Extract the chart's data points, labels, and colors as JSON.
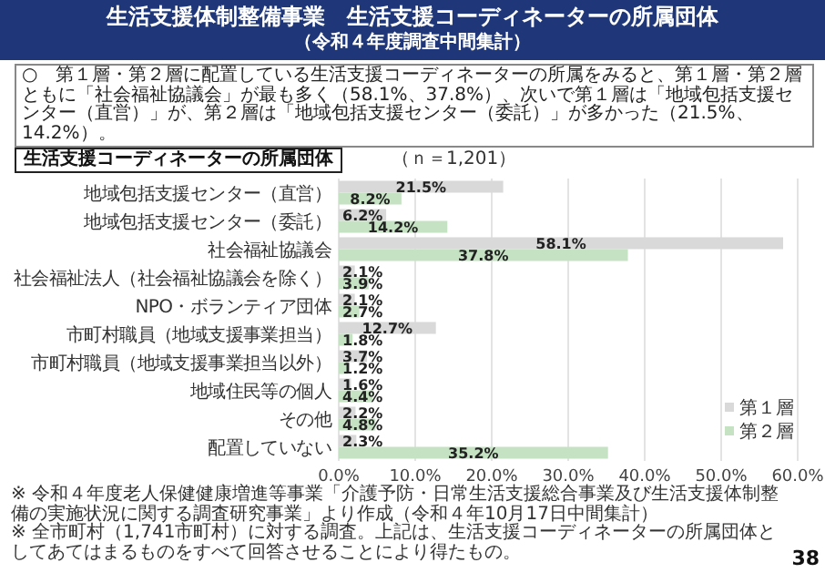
{
  "chart_data": {
    "type": "bar",
    "orientation": "horizontal",
    "title": "生活支援体制整備事業　生活支援コーディネーターの所属団体",
    "subtitle": "（令和４年度調査中間集計）",
    "categories": [
      "地域包括支援センター（直営）",
      "地域包括支援センター（委託）",
      "社会福祉協議会",
      "社会福祉法人（社会福祉協議会を除く）",
      "NPO・ボランティア団体",
      "市町村職員（地域支援事業担当）",
      "市町村職員（地域支援事業担当以外）",
      "地域住民等の個人",
      "その他",
      "配置していない"
    ],
    "series": [
      {
        "name": "第１層",
        "color": "#d9d9d9",
        "values": [
          21.5,
          6.2,
          58.1,
          2.1,
          2.1,
          12.7,
          3.7,
          1.6,
          2.2,
          2.3
        ],
        "value_labels": [
          "21.5%",
          "6.2%",
          "58.1%",
          "2.1%",
          "2.1%",
          "12.7%",
          "3.7%",
          "1.6%",
          "2.2%",
          "2.3%"
        ]
      },
      {
        "name": "第２層",
        "color": "#c5e3c3",
        "values": [
          8.2,
          14.2,
          37.8,
          3.9,
          2.7,
          1.8,
          1.2,
          4.4,
          4.8,
          35.2
        ],
        "value_labels": [
          "8.2%",
          "14.2%",
          "37.8%",
          "3.9%",
          "2.7%",
          "1.8%",
          "1.2%",
          "4.4%",
          "4.8%",
          "35.2%"
        ]
      }
    ],
    "xlim": [
      0,
      60
    ],
    "xticks": [
      {
        "value": 0,
        "label": "0.0%"
      },
      {
        "value": 10,
        "label": "10.0%"
      },
      {
        "value": 20,
        "label": "20.0%"
      },
      {
        "value": 30,
        "label": "30.0%"
      },
      {
        "value": 40,
        "label": "40.0%"
      },
      {
        "value": 50,
        "label": "50.0%"
      },
      {
        "value": 60,
        "label": "60.0%"
      }
    ],
    "grid": "x",
    "legend": "bottom right",
    "annotations": [
      "○　第１層・第２層に配置している生活支援コーディネーターの所属をみると、第１層・第２層ともに「社会福祉協議会」が最も多く（58.1%、37.8%）、次いで第１層は「地域包括支援センター（直営）」が、第２層は「地域包括支援センター（委託）」が多かった（21.5%、14.2%）。",
      "生活支援コーディネーターの所属団体",
      "（ｎ＝1,201）",
      "※ 令和４年度老人保健健康増進等事業「介護予防・日常生活支援総合事業及び生活支援体制整備の実施状況に関する調査研究事業」より作成（令和４年10月17日中間集計）",
      "※ 全市町村（1,741市町村）に対する調査。上記は、生活支援コーディネーターの所属団体としてあてはまるものをすべて回答させることにより得たもの。",
      "38"
    ]
  }
}
